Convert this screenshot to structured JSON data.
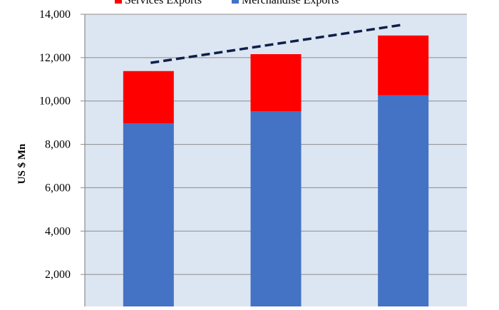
{
  "chart_data": {
    "type": "bar",
    "stacked": true,
    "categories": [
      "",
      "",
      ""
    ],
    "series": [
      {
        "name": "Merchandise Exports",
        "color": "#4472c4",
        "values": [
          8970,
          9530,
          10260
        ]
      },
      {
        "name": "Services Exports",
        "color": "#ff0000",
        "values": [
          2410,
          2630,
          2760
        ]
      }
    ],
    "trendline": {
      "style": "dashed",
      "color": "#0f1f4a",
      "from": 11760,
      "to": 13500
    },
    "ylabel": "US $ Mn",
    "ylim": [
      0,
      14000
    ],
    "yticks": [
      "2,000",
      "4,000",
      "6,000",
      "8,000",
      "10,000",
      "12,000",
      "14,000"
    ],
    "grid": true,
    "legend": "top",
    "plot_background": "#dce6f2"
  }
}
